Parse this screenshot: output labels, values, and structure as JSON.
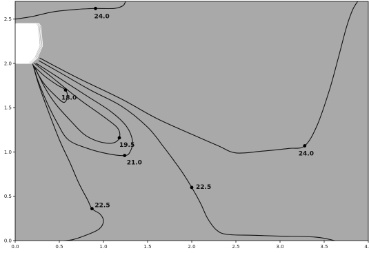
{
  "chart_data": {
    "type": "contour",
    "xlim": [
      0.0,
      4.0
    ],
    "ylim": [
      0.0,
      2.7
    ],
    "x_ticks": [
      "0.0",
      "0.5",
      "1.0",
      "1.5",
      "2.0",
      "2.5",
      "3.0",
      "3.5",
      "4.0"
    ],
    "y_ticks": [
      "0.0",
      "0.5",
      "1.0",
      "1.5",
      "2.0",
      "2.5"
    ],
    "grid": false,
    "background_color": "#a9a9a9",
    "line_color": "#111111",
    "obstacle": {
      "fill": "#ffffff",
      "polygon": [
        [
          0.0,
          2.0
        ],
        [
          0.15,
          2.0
        ],
        [
          0.22,
          2.06
        ],
        [
          0.28,
          2.2
        ],
        [
          0.26,
          2.42
        ],
        [
          0.24,
          2.45
        ],
        [
          0.0,
          2.45
        ]
      ]
    },
    "contours": [
      {
        "level": "18.0",
        "label_point": [
          0.57,
          1.7
        ],
        "label_offset": [
          -6,
          14
        ],
        "points": [
          [
            0.2,
            1.98
          ],
          [
            0.33,
            1.86
          ],
          [
            0.47,
            1.76
          ],
          [
            0.57,
            1.7
          ],
          [
            0.59,
            1.62
          ],
          [
            0.55,
            1.56
          ],
          [
            0.45,
            1.64
          ],
          [
            0.32,
            1.78
          ],
          [
            0.22,
            1.95
          ]
        ]
      },
      {
        "level": "19.5",
        "label_point": [
          1.18,
          1.16
        ],
        "label_offset": [
          0,
          13
        ],
        "points": [
          [
            0.22,
            2.0
          ],
          [
            0.42,
            1.84
          ],
          [
            0.72,
            1.6
          ],
          [
            1.0,
            1.4
          ],
          [
            1.16,
            1.27
          ],
          [
            1.18,
            1.16
          ],
          [
            1.1,
            1.1
          ],
          [
            0.94,
            1.12
          ],
          [
            0.78,
            1.2
          ],
          [
            0.62,
            1.36
          ],
          [
            0.46,
            1.54
          ],
          [
            0.34,
            1.72
          ],
          [
            0.22,
            1.96
          ]
        ]
      },
      {
        "level": "21.0",
        "label_point": [
          1.24,
          0.96
        ],
        "label_offset": [
          3,
          13
        ],
        "points": [
          [
            0.24,
            2.0
          ],
          [
            0.46,
            1.86
          ],
          [
            0.8,
            1.64
          ],
          [
            1.08,
            1.46
          ],
          [
            1.26,
            1.29
          ],
          [
            1.33,
            1.12
          ],
          [
            1.3,
            1.0
          ],
          [
            1.24,
            0.96
          ],
          [
            1.05,
            0.98
          ],
          [
            0.82,
            1.04
          ],
          [
            0.6,
            1.14
          ],
          [
            0.47,
            1.34
          ],
          [
            0.36,
            1.56
          ],
          [
            0.26,
            1.8
          ],
          [
            0.21,
            1.96
          ]
        ]
      },
      {
        "level": "22.5",
        "label_point": [
          0.87,
          0.36
        ],
        "label_offset": [
          4,
          -2
        ],
        "points": [
          [
            0.2,
            1.99
          ],
          [
            0.26,
            1.78
          ],
          [
            0.36,
            1.5
          ],
          [
            0.5,
            1.14
          ],
          [
            0.62,
            0.88
          ],
          [
            0.72,
            0.65
          ],
          [
            0.82,
            0.46
          ],
          [
            0.87,
            0.36
          ],
          [
            0.96,
            0.3
          ],
          [
            1.0,
            0.22
          ],
          [
            0.95,
            0.13
          ],
          [
            0.8,
            0.06
          ],
          [
            0.65,
            0.01
          ],
          [
            0.56,
            0.0
          ]
        ]
      },
      {
        "level": "22.5",
        "label_point": [
          2.0,
          0.6
        ],
        "label_offset": [
          6,
          2
        ],
        "points": [
          [
            0.27,
            2.03
          ],
          [
            0.5,
            1.9
          ],
          [
            0.85,
            1.7
          ],
          [
            1.2,
            1.52
          ],
          [
            1.5,
            1.28
          ],
          [
            1.68,
            1.06
          ],
          [
            1.8,
            0.9
          ],
          [
            1.9,
            0.76
          ],
          [
            2.0,
            0.6
          ],
          [
            2.1,
            0.42
          ],
          [
            2.18,
            0.25
          ],
          [
            2.28,
            0.12
          ],
          [
            2.4,
            0.07
          ],
          [
            2.7,
            0.06
          ],
          [
            3.0,
            0.05
          ],
          [
            3.4,
            0.04
          ],
          [
            3.62,
            0.0
          ]
        ]
      },
      {
        "level": "24.0",
        "label_point": [
          3.28,
          1.07
        ],
        "label_offset": [
          -9,
          14
        ],
        "points": [
          [
            0.28,
            2.06
          ],
          [
            0.7,
            1.84
          ],
          [
            1.2,
            1.6
          ],
          [
            1.6,
            1.38
          ],
          [
            2.0,
            1.2
          ],
          [
            2.3,
            1.07
          ],
          [
            2.5,
            0.99
          ],
          [
            2.8,
            1.01
          ],
          [
            3.1,
            1.04
          ],
          [
            3.28,
            1.07
          ],
          [
            3.42,
            1.3
          ],
          [
            3.56,
            1.7
          ],
          [
            3.67,
            2.1
          ],
          [
            3.75,
            2.4
          ],
          [
            3.82,
            2.6
          ],
          [
            3.88,
            2.7
          ]
        ]
      },
      {
        "level": "24.0",
        "label_point": [
          0.91,
          2.62
        ],
        "label_offset": [
          -2,
          14
        ],
        "points": [
          [
            0.0,
            2.5
          ],
          [
            0.2,
            2.53
          ],
          [
            0.42,
            2.58
          ],
          [
            0.7,
            2.61
          ],
          [
            0.91,
            2.62
          ],
          [
            1.12,
            2.62
          ],
          [
            1.22,
            2.65
          ],
          [
            1.25,
            2.7
          ]
        ]
      }
    ]
  }
}
